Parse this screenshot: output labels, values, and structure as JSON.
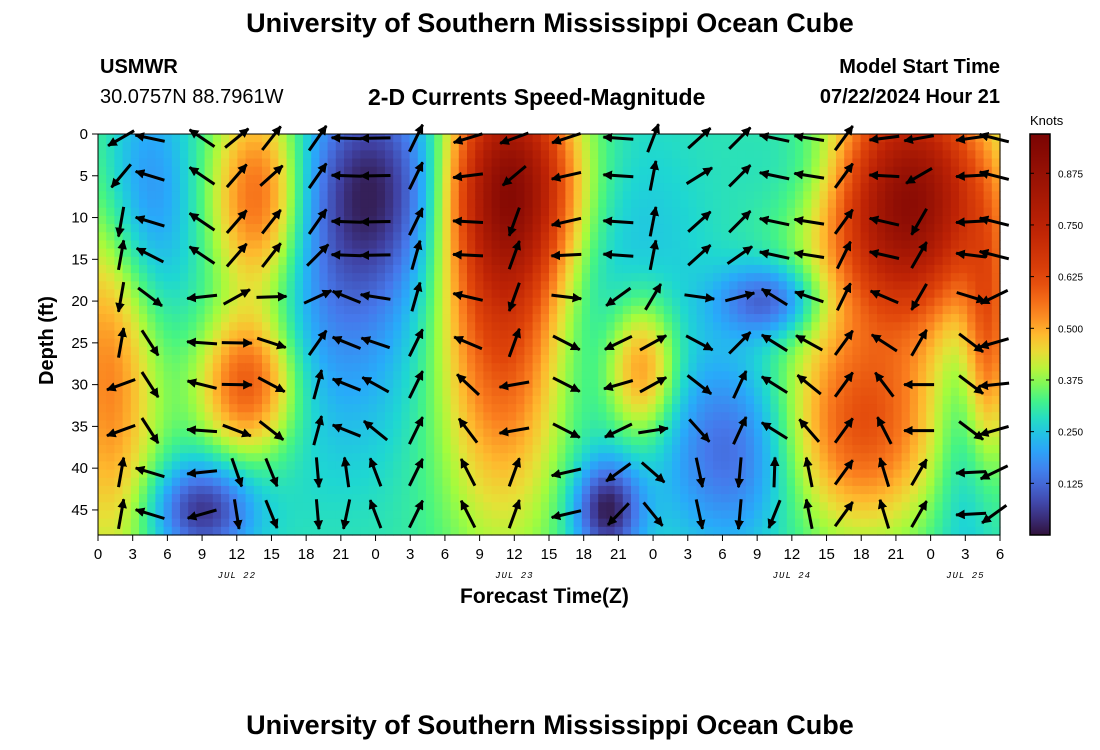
{
  "header": {
    "title": "University of Southern Mississippi Ocean Cube",
    "station": "USMWR",
    "coords": "30.0757N  88.7961W",
    "subtitle": "2-D Currents Speed-Magnitude",
    "model_label": "Model Start Time",
    "model_time": "07/22/2024 Hour 21",
    "footer_title": "University of Southern Mississippi Ocean Cube"
  },
  "chart_data": {
    "type": "heatmap",
    "title": "2-D Currents Speed-Magnitude",
    "xlabel": "Forecast Time(Z)",
    "ylabel": "Depth (ft)",
    "colorbar_label": "Knots",
    "x_tick_labels": [
      "0",
      "3",
      "6",
      "9",
      "12",
      "15",
      "18",
      "21",
      "0",
      "3",
      "6",
      "9",
      "12",
      "15",
      "18",
      "21",
      "0",
      "3",
      "6",
      "9",
      "12",
      "15",
      "18",
      "21",
      "0",
      "3",
      "6"
    ],
    "y_tick_labels": [
      "0",
      "5",
      "10",
      "15",
      "20",
      "25",
      "30",
      "35",
      "40",
      "45"
    ],
    "xlim_hours": [
      0,
      78
    ],
    "ylim_ft": [
      0,
      48
    ],
    "day_labels": [
      {
        "text": "JUL 22",
        "hour": 12
      },
      {
        "text": "JUL 23",
        "hour": 36
      },
      {
        "text": "JUL 24",
        "hour": 60
      },
      {
        "text": "JUL 25",
        "hour": 75
      }
    ],
    "colorbar_ticks": [
      "0.125",
      "0.250",
      "0.375",
      "0.500",
      "0.625",
      "0.750",
      "0.875"
    ],
    "colorbar_range": [
      0,
      0.97
    ],
    "speed_centers": [
      {
        "t": 1,
        "d": 27,
        "v": 0.55,
        "st": 3,
        "sd": 18
      },
      {
        "t": 3.5,
        "d": 8,
        "v": 0.12,
        "st": 3,
        "sd": 10
      },
      {
        "t": 14,
        "d": 8,
        "v": 0.62,
        "st": 3,
        "sd": 9
      },
      {
        "t": 13,
        "d": 30,
        "v": 0.62,
        "st": 3,
        "sd": 6
      },
      {
        "t": 9,
        "d": 45,
        "v": 0.05,
        "st": 3,
        "sd": 4
      },
      {
        "t": 24,
        "d": 6,
        "v": 0.05,
        "st": 5,
        "sd": 9
      },
      {
        "t": 20,
        "d": 22,
        "v": 0.18,
        "st": 6,
        "sd": 12
      },
      {
        "t": 35,
        "d": 16,
        "v": 0.68,
        "st": 4,
        "sd": 20
      },
      {
        "t": 36,
        "d": 6,
        "v": 0.62,
        "st": 4,
        "sd": 8
      },
      {
        "t": 45,
        "d": 20,
        "v": 0.22,
        "st": 5,
        "sd": 14
      },
      {
        "t": 47,
        "d": 28,
        "v": 0.57,
        "st": 2.2,
        "sd": 6
      },
      {
        "t": 44,
        "d": 45,
        "v": 0.02,
        "st": 2,
        "sd": 4
      },
      {
        "t": 58,
        "d": 20,
        "v": 0.1,
        "st": 3,
        "sd": 3
      },
      {
        "t": 55,
        "d": 38,
        "v": 0.12,
        "st": 4,
        "sd": 8
      },
      {
        "t": 63,
        "d": 4,
        "v": 0.22,
        "st": 4,
        "sd": 5
      },
      {
        "t": 70,
        "d": 8,
        "v": 0.92,
        "st": 5,
        "sd": 10
      },
      {
        "t": 66,
        "d": 35,
        "v": 0.6,
        "st": 5,
        "sd": 9
      },
      {
        "t": 75,
        "d": 38,
        "v": 0.22,
        "st": 2,
        "sd": 14
      },
      {
        "t": 77,
        "d": 25,
        "v": 0.55,
        "st": 1.5,
        "sd": 10
      }
    ],
    "arrow_times": [
      2,
      4.5,
      9,
      12,
      15,
      19,
      21.5,
      24,
      27.5,
      32,
      36,
      40.5,
      45,
      48,
      52,
      55.5,
      58.5,
      61.5,
      64.5,
      68,
      71,
      75.5,
      77.5
    ],
    "arrow_depths": [
      0.5,
      5,
      10.5,
      14.5,
      19.5,
      25,
      30,
      35.5,
      40.5,
      45.5
    ],
    "arrow_angle_seeds": [
      [
        170,
        150,
        120,
        300,
        120,
        300,
        180,
        180,
        300,
        300
      ],
      [
        175,
        180,
        180,
        190,
        20,
        40,
        40,
        40,
        180,
        180
      ],
      [
        200,
        200,
        200,
        200,
        160,
        170,
        180,
        170,
        160,
        150
      ],
      [
        310,
        300,
        300,
        300,
        320,
        350,
        350,
        10,
        60,
        70
      ],
      [
        300,
        310,
        300,
        300,
        350,
        10,
        20,
        30,
        60,
        60
      ],
      [
        300,
        300,
        300,
        310,
        330,
        300,
        280,
        280,
        80,
        80
      ],
      [
        180,
        180,
        180,
        180,
        200,
        200,
        200,
        200,
        260,
        100
      ],
      [
        180,
        180,
        180,
        180,
        190,
        200,
        210,
        220,
        250,
        250
      ],
      [
        300,
        300,
        300,
        290,
        290,
        300,
        300,
        300,
        300,
        300
      ],
      [
        170,
        180,
        190,
        190,
        200,
        210,
        230,
        240,
        250,
        250
      ]
    ]
  }
}
